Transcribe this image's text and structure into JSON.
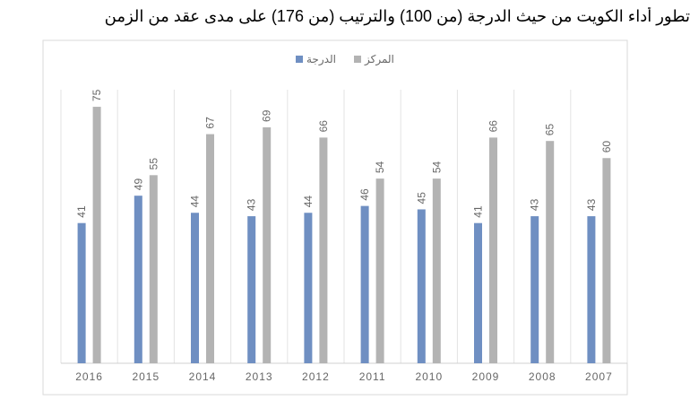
{
  "chart_data": {
    "type": "bar",
    "title": "تطور أداء الكويت من حيث الدرجة (من 100) والترتيب (من 176) على مدى عقد من الزمن",
    "categories": [
      "2016",
      "2015",
      "2014",
      "2013",
      "2012",
      "2011",
      "2010",
      "2009",
      "2008",
      "2007"
    ],
    "series": [
      {
        "name": "الدرجة",
        "color": "#6f8fc2",
        "values": [
          41,
          49,
          44,
          43,
          44,
          46,
          45,
          41,
          43,
          43
        ]
      },
      {
        "name": "المركز",
        "color": "#b3b3b3",
        "values": [
          75,
          55,
          67,
          69,
          66,
          54,
          54,
          66,
          65,
          60
        ]
      }
    ],
    "ylim": [
      0,
      80
    ]
  }
}
